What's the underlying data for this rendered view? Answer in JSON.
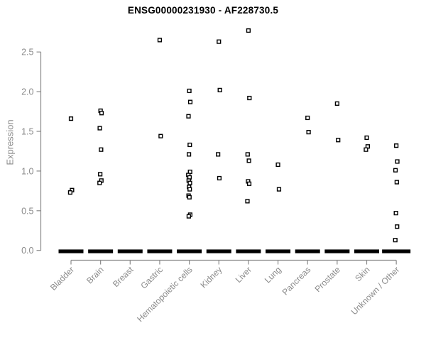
{
  "title": "ENSG00000231930 - AF228730.5",
  "chart_data": {
    "type": "scatter",
    "subtype": "strip-plot",
    "title": "ENSG00000231930 - AF228730.5",
    "xlabel": "",
    "ylabel": "Expression",
    "ylim": [
      0,
      2.85
    ],
    "yticks": [
      0,
      0.5,
      1,
      1.5,
      2,
      2.5
    ],
    "ytick_labels": [
      "0.0",
      "0.5",
      "1.0",
      "1.5",
      "2.0",
      "2.5"
    ],
    "grid": false,
    "legend": false,
    "marker": "open-square",
    "marker_color": "#000000",
    "axis_color": "#8a8a8a",
    "categories": [
      "Bladder",
      "Brain",
      "Breast",
      "Gastric",
      "Hematopoietic cells",
      "Kidney",
      "Liver",
      "Lung",
      "Pancreas",
      "Prostate",
      "Skin",
      "Unknown / Other"
    ],
    "series": [
      {
        "name": "Bladder",
        "zero_dash": true,
        "values": [
          1.66,
          0.76,
          0.73
        ]
      },
      {
        "name": "Brain",
        "zero_dash": true,
        "values": [
          1.76,
          1.73,
          1.54,
          1.27,
          0.96,
          0.88,
          0.85
        ]
      },
      {
        "name": "Breast",
        "zero_dash": true,
        "values": []
      },
      {
        "name": "Gastric",
        "zero_dash": true,
        "values": [
          2.65,
          1.44
        ]
      },
      {
        "name": "Hematopoietic cells",
        "zero_dash": true,
        "values": [
          2.01,
          1.87,
          1.69,
          1.33,
          1.21,
          0.99,
          0.95,
          0.92,
          0.88,
          0.85,
          0.8,
          0.77,
          0.69,
          0.67,
          0.45,
          0.43
        ]
      },
      {
        "name": "Kidney",
        "zero_dash": true,
        "values": [
          2.63,
          2.02,
          1.21,
          0.91
        ]
      },
      {
        "name": "Liver",
        "zero_dash": true,
        "values": [
          2.77,
          1.92,
          1.21,
          1.13,
          0.87,
          0.84,
          0.62
        ]
      },
      {
        "name": "Lung",
        "zero_dash": true,
        "values": [
          1.08,
          0.77
        ]
      },
      {
        "name": "Pancreas",
        "zero_dash": true,
        "values": [
          1.67,
          1.49
        ]
      },
      {
        "name": "Prostate",
        "zero_dash": true,
        "values": [
          1.85,
          1.39
        ]
      },
      {
        "name": "Skin",
        "zero_dash": true,
        "values": [
          1.42,
          1.31,
          1.27
        ]
      },
      {
        "name": "Unknown / Other",
        "zero_dash": true,
        "values": [
          1.32,
          1.12,
          1.01,
          0.86,
          0.47,
          0.3,
          0.13
        ]
      }
    ],
    "zero_dash_meaning": "thick black dash of overlapping points at expression 0.0 in every category"
  }
}
